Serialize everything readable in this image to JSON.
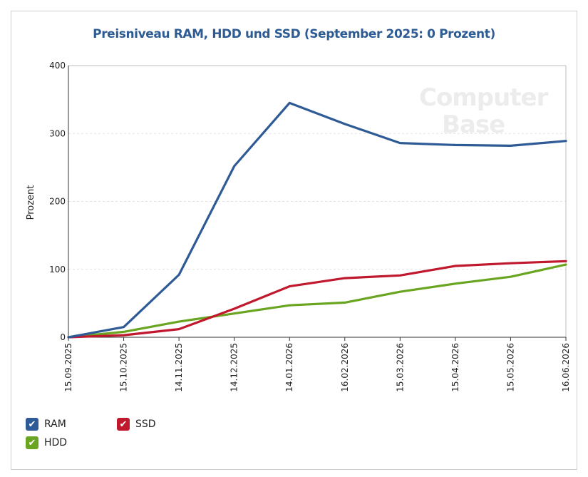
{
  "chart_data": {
    "type": "line",
    "title": "Preisniveau RAM, HDD und SSD (September 2025: 0 Prozent)",
    "ylabel": "Prozent",
    "xlabel": "",
    "ylim": [
      0,
      400
    ],
    "yticks": [
      0,
      100,
      200,
      300,
      400
    ],
    "grid": true,
    "legend_position": "bottom-left",
    "categories": [
      "15.09.2025",
      "15.10.2025",
      "14.11.2025",
      "14.12.2025",
      "14.01.2026",
      "16.02.2026",
      "15.03.2026",
      "15.04.2026",
      "15.05.2026",
      "16.06.2026"
    ],
    "series": [
      {
        "name": "RAM",
        "color": "#2e5b95",
        "values": [
          0,
          15,
          92,
          252,
          345,
          314,
          286,
          283,
          282,
          289
        ]
      },
      {
        "name": "SSD",
        "color": "#c0182d",
        "values": [
          0,
          3,
          12,
          42,
          75,
          87,
          91,
          105,
          109,
          112
        ]
      },
      {
        "name": "HDD",
        "color": "#6aa521",
        "values": [
          0,
          8,
          23,
          35,
          47,
          51,
          67,
          79,
          89,
          107
        ]
      }
    ]
  },
  "watermark": {
    "line1": "Computer",
    "line2": "Base"
  }
}
